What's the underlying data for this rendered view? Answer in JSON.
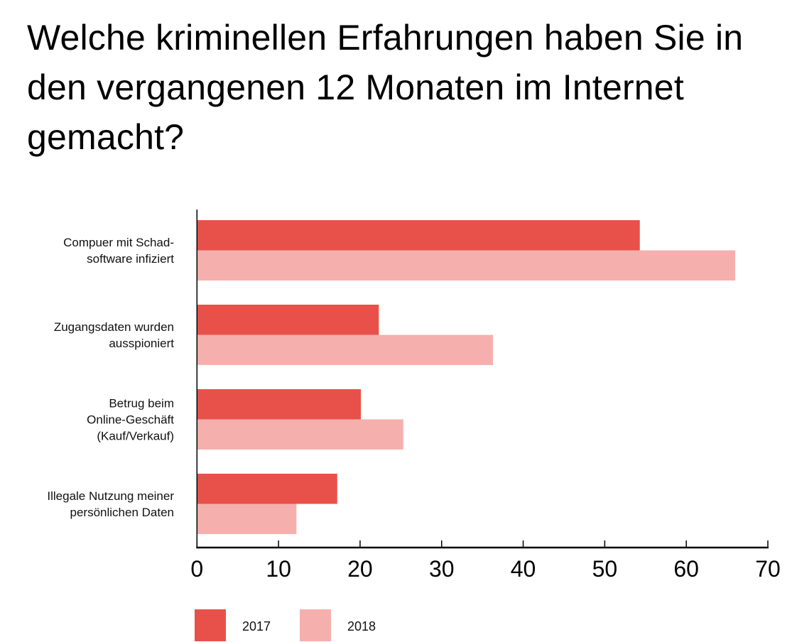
{
  "chart_data": {
    "type": "bar",
    "orientation": "horizontal",
    "title": "Welche kriminellen Erfahrungen haben Sie in den vergangenen 12 Monaten im Internet gemacht?",
    "categories": [
      [
        "Compuer mit Schad-",
        "software infiziert"
      ],
      [
        "Zugangsdaten wurden",
        "ausspioniert"
      ],
      [
        "Betrug beim",
        "Online-Geschäft",
        "(Kauf/Verkauf)"
      ],
      [
        "Illegale Nutzung meiner",
        "persönlichen Daten"
      ]
    ],
    "series": [
      {
        "name": "2017",
        "color": "#e8514a",
        "values": [
          54.3,
          22.3,
          20.1,
          17.2
        ]
      },
      {
        "name": "2018",
        "color": "#f5b0ae",
        "values": [
          66.0,
          36.3,
          25.3,
          12.2
        ]
      }
    ],
    "xlim": [
      0,
      70
    ],
    "xticks": [
      "0",
      "10",
      "20",
      "30",
      "40",
      "50",
      "60",
      "70"
    ],
    "xlabel": "",
    "ylabel": "",
    "grid": false,
    "legend_position": "bottom-left"
  }
}
